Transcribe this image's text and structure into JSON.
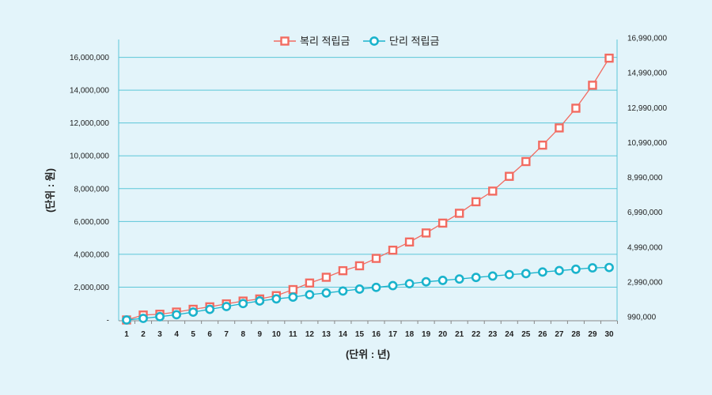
{
  "chart_data": {
    "type": "line",
    "x": [
      1,
      2,
      3,
      4,
      5,
      6,
      7,
      8,
      9,
      10,
      11,
      12,
      13,
      14,
      15,
      16,
      17,
      18,
      19,
      20,
      21,
      22,
      23,
      24,
      25,
      26,
      27,
      28,
      29,
      30
    ],
    "xlabel": "(단위 : 년)",
    "ylabel": "(단위 : 원)",
    "ylim_left": [
      0,
      16990000
    ],
    "ylim_right": [
      990000,
      16990000
    ],
    "left_ticks": [
      {
        "value": 0,
        "label": "-"
      },
      {
        "value": 2000000,
        "label": "2,000,000"
      },
      {
        "value": 4000000,
        "label": "4,000,000"
      },
      {
        "value": 6000000,
        "label": "6,000,000"
      },
      {
        "value": 8000000,
        "label": "8,000,000"
      },
      {
        "value": 10000000,
        "label": "10,000,000"
      },
      {
        "value": 12000000,
        "label": "12,000,000"
      },
      {
        "value": 14000000,
        "label": "14,000,000"
      },
      {
        "value": 16000000,
        "label": "16,000,000"
      }
    ],
    "right_ticks": [
      {
        "value": 990000,
        "label": "990,000"
      },
      {
        "value": 2990000,
        "label": "2,990,000"
      },
      {
        "value": 4990000,
        "label": "4,990,000"
      },
      {
        "value": 6990000,
        "label": "6,990,000"
      },
      {
        "value": 8990000,
        "label": "8,990,000"
      },
      {
        "value": 10990000,
        "label": "10,990,000"
      },
      {
        "value": 12990000,
        "label": "12,990,000"
      },
      {
        "value": 14990000,
        "label": "14,990,000"
      },
      {
        "value": 16990000,
        "label": "16,990,000"
      }
    ],
    "grid": true,
    "legend_position": "top-center",
    "series": [
      {
        "name": "복리 적립금",
        "axis": "left",
        "color": "#f26b61",
        "marker": "square",
        "values": [
          0,
          300000,
          350000,
          480000,
          650000,
          800000,
          980000,
          1150000,
          1280000,
          1480000,
          1850000,
          2250000,
          2600000,
          3000000,
          3300000,
          3750000,
          4250000,
          4750000,
          5300000,
          5900000,
          6500000,
          7200000,
          7850000,
          8750000,
          9650000,
          10650000,
          11700000,
          12900000,
          14300000,
          15950000
        ]
      },
      {
        "name": "단리 적립금",
        "axis": "right",
        "color": "#1ab3cc",
        "marker": "circle",
        "values": [
          990000,
          1080000,
          1180000,
          1290000,
          1440000,
          1600000,
          1760000,
          1930000,
          2080000,
          2200000,
          2300000,
          2440000,
          2540000,
          2650000,
          2760000,
          2860000,
          2960000,
          3070000,
          3180000,
          3260000,
          3340000,
          3430000,
          3510000,
          3590000,
          3650000,
          3740000,
          3820000,
          3900000,
          3980000,
          4000000
        ]
      }
    ]
  }
}
